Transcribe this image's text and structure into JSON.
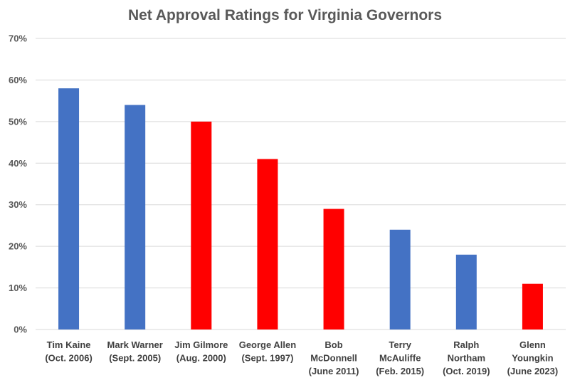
{
  "chart_data": {
    "type": "bar",
    "title": "Net Approval Ratings for Virginia Governors",
    "xlabel": "",
    "ylabel": "",
    "ylim": [
      0,
      70
    ],
    "yticks": [
      0,
      10,
      20,
      30,
      40,
      50,
      60,
      70
    ],
    "ytick_labels": [
      "0%",
      "10%",
      "20%",
      "30%",
      "40%",
      "50%",
      "60%",
      "70%"
    ],
    "grid": true,
    "legend": "none",
    "categories": [
      [
        "Tim Kaine",
        "(Oct. 2006)"
      ],
      [
        "Mark Warner",
        "(Sept. 2005)"
      ],
      [
        "Jim Gilmore",
        "(Aug. 2000)"
      ],
      [
        "George Allen",
        "(Sept. 1997)"
      ],
      [
        "Bob",
        "McDonnell",
        "(June 2011)"
      ],
      [
        "Terry",
        "McAuliffe",
        "(Feb. 2015)"
      ],
      [
        "Ralph",
        "Northam",
        "(Oct. 2019)"
      ],
      [
        "Glenn",
        "Youngkin",
        "(June 2023)"
      ]
    ],
    "values": [
      58,
      54,
      50,
      41,
      29,
      24,
      18,
      11
    ],
    "bar_colors": [
      "#4472C4",
      "#4472C4",
      "#FF0000",
      "#FF0000",
      "#FF0000",
      "#4472C4",
      "#4472C4",
      "#FF0000"
    ]
  }
}
